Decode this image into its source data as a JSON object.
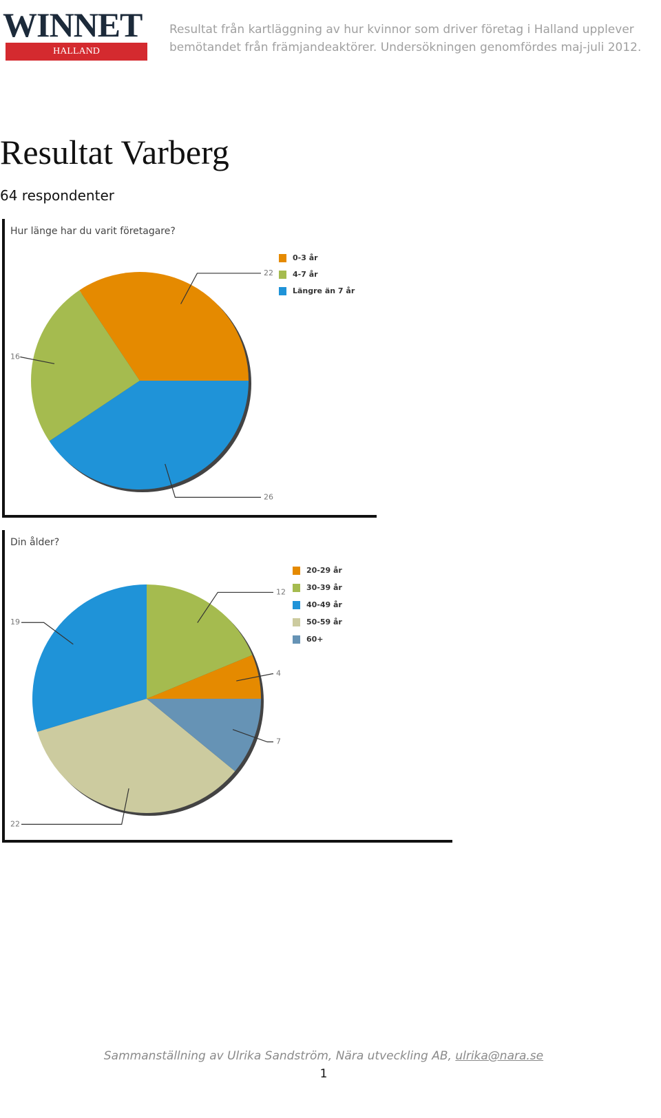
{
  "logo": {
    "name": "WINNET",
    "region": "HALLAND"
  },
  "header": {
    "lines": [
      "Resultat från kartläggning av hur kvinnor som driver företag i Halland upplever",
      "bemötandet från främjandeaktörer. Undersökningen genomfördes maj-juli 2012."
    ]
  },
  "title": "Resultat Varberg",
  "respondents": "64 respondenter",
  "chart_data": [
    {
      "type": "pie",
      "title": "Hur länge har du varit företagare?",
      "categories": [
        "0-3 år",
        "4-7 år",
        "Längre än 7 år"
      ],
      "values": [
        22,
        16,
        26
      ],
      "colors": [
        "#e58a00",
        "#a5bb4f",
        "#1f93d8"
      ]
    },
    {
      "type": "pie",
      "title": "Din ålder?",
      "categories": [
        "20-29 år",
        "30-39 år",
        "40-49 år",
        "50-59 år",
        "60+"
      ],
      "values": [
        4,
        12,
        19,
        22,
        7
      ],
      "colors": [
        "#e58a00",
        "#a5bb4f",
        "#1f93d8",
        "#cccb9f",
        "#6693b5"
      ]
    }
  ],
  "footer": {
    "text": "Sammanställning av Ulrika Sandström, Nära utveckling AB,",
    "email": "ulrika@nara.se",
    "page": "1"
  }
}
